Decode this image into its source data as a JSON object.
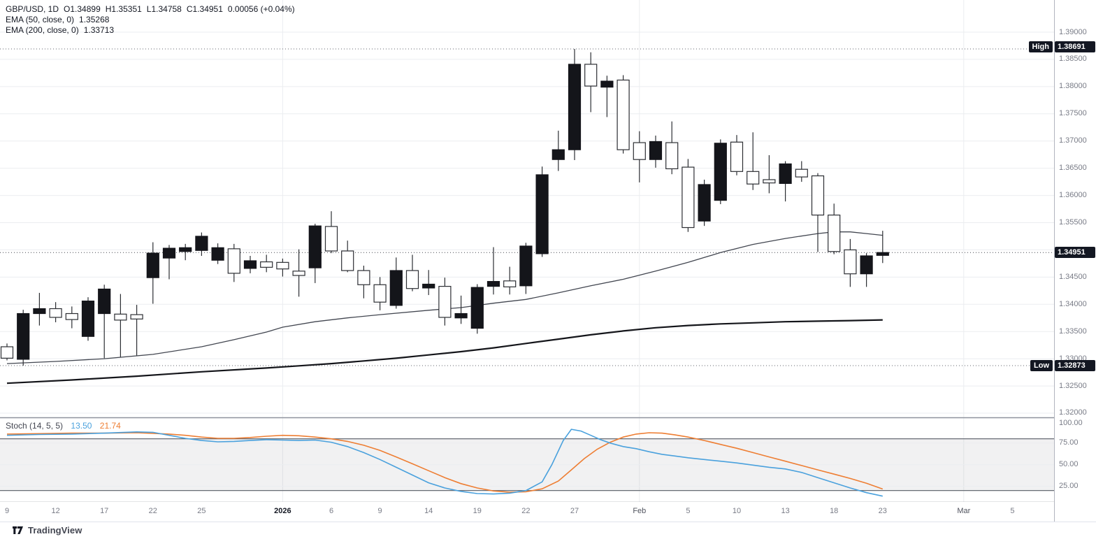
{
  "header": {
    "symbol": "GBP/USD, 1D",
    "open": "O1.34899",
    "high": "H1.35351",
    "low": "L1.34758",
    "close": "C1.34951",
    "change": "0.00056 (+0.04%)",
    "ema50_label": "EMA (50, close, 0)",
    "ema50_value": "1.35268",
    "ema200_label": "EMA (200, close, 0)",
    "ema200_value": "1.33713"
  },
  "stoch_legend": {
    "label": "Stoch (14, 5, 5)",
    "k_value": "13.50",
    "d_value": "21.74"
  },
  "badges": {
    "high_label": "High",
    "high_value": "1.38691",
    "low_label": "Low",
    "low_value": "1.32873",
    "last_value": "1.34951"
  },
  "colors": {
    "candle_up": "#14151a",
    "candle_down": "#ffffff",
    "candle_border": "#2c2e33",
    "ema50": "#424650",
    "ema200": "#14151a",
    "stoch_k": "#4aa1dd",
    "stoch_d": "#ee7e33",
    "grid": "#ebedf0",
    "band_line": "#555a63",
    "separator": "#8f939e",
    "axis_text": "#787b86",
    "badge_bg": "#131722"
  },
  "price_axis": {
    "ticks": [
      "1.39000",
      "1.38500",
      "1.38000",
      "1.37500",
      "1.37000",
      "1.36500",
      "1.36000",
      "1.35500",
      "1.34500",
      "1.34000",
      "1.33500",
      "1.33000",
      "1.32500",
      "1.32000"
    ]
  },
  "stoch_axis": {
    "ticks": [
      "100.00",
      "75.00",
      "50.00",
      "25.00"
    ]
  },
  "footer": {
    "brand": "TradingView"
  },
  "chart_data": {
    "type": "candlestick",
    "symbol": "GBP/USD",
    "interval": "1D",
    "y_axis": {
      "min": 1.32,
      "max": 1.39,
      "tick_step": 0.005
    },
    "high_marker": 1.38691,
    "low_marker": 1.32873,
    "last_price": 1.34951,
    "time_labels": [
      {
        "t": "9",
        "i": 0
      },
      {
        "t": "12",
        "i": 3
      },
      {
        "t": "17",
        "i": 6
      },
      {
        "t": "22",
        "i": 9
      },
      {
        "t": "25",
        "i": 12
      },
      {
        "t": "2026",
        "i": 17,
        "strong": true
      },
      {
        "t": "6",
        "i": 20
      },
      {
        "t": "9",
        "i": 23
      },
      {
        "t": "14",
        "i": 26
      },
      {
        "t": "19",
        "i": 29
      },
      {
        "t": "22",
        "i": 32
      },
      {
        "t": "27",
        "i": 35
      },
      {
        "t": "Feb",
        "i": 39,
        "month": true
      },
      {
        "t": "5",
        "i": 42
      },
      {
        "t": "10",
        "i": 45
      },
      {
        "t": "13",
        "i": 48
      },
      {
        "t": "18",
        "i": 51
      },
      {
        "t": "23",
        "i": 54
      },
      {
        "t": "Mar",
        "i": 59,
        "month": true
      },
      {
        "t": "5",
        "i": 62
      }
    ],
    "candles": [
      {
        "d": "Dec 9",
        "o": 1.3322,
        "h": 1.3328,
        "l": 1.3297,
        "c": 1.3301
      },
      {
        "d": "Dec 10",
        "o": 1.3299,
        "h": 1.339,
        "l": 1.32873,
        "c": 1.3383
      },
      {
        "d": "Dec 11",
        "o": 1.3383,
        "h": 1.3421,
        "l": 1.3361,
        "c": 1.3392
      },
      {
        "d": "Dec 12",
        "o": 1.3392,
        "h": 1.3404,
        "l": 1.3367,
        "c": 1.3376
      },
      {
        "d": "Dec 15",
        "o": 1.3383,
        "h": 1.3396,
        "l": 1.3356,
        "c": 1.3372
      },
      {
        "d": "Dec 16",
        "o": 1.3341,
        "h": 1.3413,
        "l": 1.3333,
        "c": 1.3406
      },
      {
        "d": "Dec 17",
        "o": 1.3383,
        "h": 1.3436,
        "l": 1.3301,
        "c": 1.3428
      },
      {
        "d": "Dec 18",
        "o": 1.3382,
        "h": 1.3419,
        "l": 1.3303,
        "c": 1.3371
      },
      {
        "d": "Dec 19",
        "o": 1.3381,
        "h": 1.3399,
        "l": 1.3306,
        "c": 1.3373
      },
      {
        "d": "Dec 22",
        "o": 1.3449,
        "h": 1.3514,
        "l": 1.3401,
        "c": 1.3494
      },
      {
        "d": "Dec 23",
        "o": 1.3485,
        "h": 1.3509,
        "l": 1.3446,
        "c": 1.3503
      },
      {
        "d": "Dec 24",
        "o": 1.3497,
        "h": 1.3511,
        "l": 1.3481,
        "c": 1.3504
      },
      {
        "d": "Dec 25",
        "o": 1.3499,
        "h": 1.3532,
        "l": 1.3489,
        "c": 1.3525
      },
      {
        "d": "Dec 26",
        "o": 1.3481,
        "h": 1.3512,
        "l": 1.3474,
        "c": 1.3504
      },
      {
        "d": "Dec 29",
        "o": 1.3502,
        "h": 1.3511,
        "l": 1.3441,
        "c": 1.3457
      },
      {
        "d": "Dec 30",
        "o": 1.3466,
        "h": 1.3489,
        "l": 1.3457,
        "c": 1.348
      },
      {
        "d": "Dec 31",
        "o": 1.3478,
        "h": 1.3491,
        "l": 1.3459,
        "c": 1.3468
      },
      {
        "d": "Jan 1",
        "o": 1.3477,
        "h": 1.3484,
        "l": 1.3451,
        "c": 1.3465
      },
      {
        "d": "Jan 2",
        "o": 1.3461,
        "h": 1.3501,
        "l": 1.3414,
        "c": 1.3453
      },
      {
        "d": "Jan 5",
        "o": 1.3467,
        "h": 1.3548,
        "l": 1.3439,
        "c": 1.3544
      },
      {
        "d": "Jan 6",
        "o": 1.3543,
        "h": 1.3571,
        "l": 1.3494,
        "c": 1.3498
      },
      {
        "d": "Jan 7",
        "o": 1.3498,
        "h": 1.3517,
        "l": 1.3459,
        "c": 1.3462
      },
      {
        "d": "Jan 8",
        "o": 1.3462,
        "h": 1.3471,
        "l": 1.3411,
        "c": 1.3436
      },
      {
        "d": "Jan 9",
        "o": 1.3436,
        "h": 1.345,
        "l": 1.3389,
        "c": 1.3404
      },
      {
        "d": "Jan 12",
        "o": 1.3398,
        "h": 1.3486,
        "l": 1.3392,
        "c": 1.3462
      },
      {
        "d": "Jan 13",
        "o": 1.3462,
        "h": 1.3491,
        "l": 1.3424,
        "c": 1.3429
      },
      {
        "d": "Jan 14",
        "o": 1.343,
        "h": 1.3463,
        "l": 1.3417,
        "c": 1.3437
      },
      {
        "d": "Jan 15",
        "o": 1.3433,
        "h": 1.3449,
        "l": 1.3361,
        "c": 1.3376
      },
      {
        "d": "Jan 16",
        "o": 1.3375,
        "h": 1.3416,
        "l": 1.3364,
        "c": 1.3383
      },
      {
        "d": "Jan 19",
        "o": 1.3356,
        "h": 1.3437,
        "l": 1.3346,
        "c": 1.3431
      },
      {
        "d": "Jan 20",
        "o": 1.3433,
        "h": 1.3505,
        "l": 1.3418,
        "c": 1.3442
      },
      {
        "d": "Jan 21",
        "o": 1.3443,
        "h": 1.3469,
        "l": 1.3418,
        "c": 1.3432
      },
      {
        "d": "Jan 22",
        "o": 1.3434,
        "h": 1.3513,
        "l": 1.3419,
        "c": 1.3507
      },
      {
        "d": "Jan 23",
        "o": 1.3493,
        "h": 1.3653,
        "l": 1.3487,
        "c": 1.3638
      },
      {
        "d": "Jan 26",
        "o": 1.3666,
        "h": 1.3719,
        "l": 1.3645,
        "c": 1.3684
      },
      {
        "d": "Jan 27",
        "o": 1.3684,
        "h": 1.38691,
        "l": 1.3665,
        "c": 1.3841
      },
      {
        "d": "Jan 28",
        "o": 1.3841,
        "h": 1.3863,
        "l": 1.3753,
        "c": 1.3801
      },
      {
        "d": "Jan 29",
        "o": 1.3799,
        "h": 1.382,
        "l": 1.3744,
        "c": 1.381
      },
      {
        "d": "Jan 30",
        "o": 1.3812,
        "h": 1.3821,
        "l": 1.3677,
        "c": 1.3684
      },
      {
        "d": "Feb 2",
        "o": 1.3697,
        "h": 1.3718,
        "l": 1.3624,
        "c": 1.3666
      },
      {
        "d": "Feb 3",
        "o": 1.3666,
        "h": 1.371,
        "l": 1.3651,
        "c": 1.3699
      },
      {
        "d": "Feb 4",
        "o": 1.3697,
        "h": 1.3736,
        "l": 1.3639,
        "c": 1.3649
      },
      {
        "d": "Feb 5",
        "o": 1.3652,
        "h": 1.3667,
        "l": 1.3533,
        "c": 1.3541
      },
      {
        "d": "Feb 6",
        "o": 1.3553,
        "h": 1.3629,
        "l": 1.3544,
        "c": 1.362
      },
      {
        "d": "Feb 9",
        "o": 1.3591,
        "h": 1.3703,
        "l": 1.3584,
        "c": 1.3696
      },
      {
        "d": "Feb 10",
        "o": 1.3698,
        "h": 1.3711,
        "l": 1.3637,
        "c": 1.3644
      },
      {
        "d": "Feb 11",
        "o": 1.3644,
        "h": 1.3716,
        "l": 1.361,
        "c": 1.3621
      },
      {
        "d": "Feb 12",
        "o": 1.3629,
        "h": 1.3674,
        "l": 1.3604,
        "c": 1.3623
      },
      {
        "d": "Feb 13",
        "o": 1.3622,
        "h": 1.3663,
        "l": 1.3589,
        "c": 1.3658
      },
      {
        "d": "Feb 16",
        "o": 1.3648,
        "h": 1.3663,
        "l": 1.3625,
        "c": 1.3634
      },
      {
        "d": "Feb 17",
        "o": 1.3636,
        "h": 1.3641,
        "l": 1.3496,
        "c": 1.3564
      },
      {
        "d": "Feb 18",
        "o": 1.3564,
        "h": 1.3585,
        "l": 1.3492,
        "c": 1.3497
      },
      {
        "d": "Feb 19",
        "o": 1.35,
        "h": 1.352,
        "l": 1.3432,
        "c": 1.3456
      },
      {
        "d": "Feb 20",
        "o": 1.3456,
        "h": 1.3494,
        "l": 1.3432,
        "c": 1.3489
      },
      {
        "d": "Feb 23",
        "o": 1.34899,
        "h": 1.35351,
        "l": 1.34758,
        "c": 1.34951
      }
    ],
    "ema50": {
      "label": "EMA (50, close, 0)",
      "last": 1.35268,
      "points": [
        [
          0,
          1.3291
        ],
        [
          3,
          1.3295
        ],
        [
          6,
          1.33
        ],
        [
          9,
          1.3308
        ],
        [
          12,
          1.3322
        ],
        [
          14,
          1.3335
        ],
        [
          16,
          1.3349
        ],
        [
          17,
          1.3358
        ],
        [
          19,
          1.3368
        ],
        [
          21,
          1.3375
        ],
        [
          23,
          1.3381
        ],
        [
          26,
          1.3389
        ],
        [
          28,
          1.3394
        ],
        [
          30,
          1.3402
        ],
        [
          32,
          1.3409
        ],
        [
          34,
          1.3421
        ],
        [
          36,
          1.3434
        ],
        [
          38,
          1.3446
        ],
        [
          40,
          1.3461
        ],
        [
          42,
          1.3477
        ],
        [
          44,
          1.3495
        ],
        [
          46,
          1.351
        ],
        [
          48,
          1.3521
        ],
        [
          50,
          1.353
        ],
        [
          51,
          1.3533
        ],
        [
          52,
          1.3533
        ],
        [
          53,
          1.353
        ],
        [
          54,
          1.35268
        ]
      ]
    },
    "ema200": {
      "label": "EMA (200, close, 0)",
      "last": 1.33713,
      "points": [
        [
          0,
          1.3255
        ],
        [
          4,
          1.3261
        ],
        [
          8,
          1.3268
        ],
        [
          12,
          1.3276
        ],
        [
          16,
          1.3283
        ],
        [
          18,
          1.3287
        ],
        [
          20,
          1.3291
        ],
        [
          22,
          1.3296
        ],
        [
          24,
          1.3301
        ],
        [
          26,
          1.3307
        ],
        [
          28,
          1.3313
        ],
        [
          30,
          1.332
        ],
        [
          32,
          1.3328
        ],
        [
          34,
          1.3336
        ],
        [
          36,
          1.3344
        ],
        [
          38,
          1.3351
        ],
        [
          40,
          1.3357
        ],
        [
          42,
          1.3361
        ],
        [
          44,
          1.3364
        ],
        [
          46,
          1.3366
        ],
        [
          48,
          1.3368
        ],
        [
          50,
          1.3369
        ],
        [
          52,
          1.337
        ],
        [
          54,
          1.33713
        ]
      ]
    },
    "stoch": {
      "label": "Stoch (14, 5, 5)",
      "k_last": 13.5,
      "d_last": 21.74,
      "upper_band": 80,
      "lower_band": 20,
      "k": [
        [
          0,
          84
        ],
        [
          2,
          85
        ],
        [
          4,
          85.5
        ],
        [
          6,
          86.5
        ],
        [
          8,
          88
        ],
        [
          9,
          87.5
        ],
        [
          10,
          84
        ],
        [
          11,
          80.5
        ],
        [
          12,
          78
        ],
        [
          13,
          76.5
        ],
        [
          14,
          77
        ],
        [
          15,
          78
        ],
        [
          16,
          79
        ],
        [
          17,
          78.5
        ],
        [
          18,
          78
        ],
        [
          19,
          78.5
        ],
        [
          20,
          76
        ],
        [
          21,
          71
        ],
        [
          22,
          64
        ],
        [
          23,
          56
        ],
        [
          24,
          47
        ],
        [
          25,
          38
        ],
        [
          26,
          29
        ],
        [
          27,
          23
        ],
        [
          28,
          19
        ],
        [
          29,
          16.5
        ],
        [
          30,
          16
        ],
        [
          31,
          17
        ],
        [
          32,
          20
        ],
        [
          33,
          30
        ],
        [
          33.6,
          50
        ],
        [
          34.3,
          78
        ],
        [
          34.8,
          91
        ],
        [
          35.4,
          89
        ],
        [
          36,
          84
        ],
        [
          36.6,
          79
        ],
        [
          37.2,
          75
        ],
        [
          38,
          71
        ],
        [
          38.8,
          68.5
        ],
        [
          39.6,
          65
        ],
        [
          40.4,
          62
        ],
        [
          41.2,
          60
        ],
        [
          42,
          58
        ],
        [
          43,
          56
        ],
        [
          44,
          54
        ],
        [
          45,
          52
        ],
        [
          46,
          49.5
        ],
        [
          47,
          47
        ],
        [
          48,
          45
        ],
        [
          49,
          41
        ],
        [
          50,
          35
        ],
        [
          51,
          29
        ],
        [
          52,
          23
        ],
        [
          53,
          17.5
        ],
        [
          54,
          13.5
        ]
      ],
      "d": [
        [
          0,
          85.5
        ],
        [
          2,
          86
        ],
        [
          4,
          86.5
        ],
        [
          6,
          86.5
        ],
        [
          8,
          87
        ],
        [
          10,
          85.5
        ],
        [
          11,
          84
        ],
        [
          12,
          82
        ],
        [
          13,
          80.5
        ],
        [
          14,
          80.5
        ],
        [
          15,
          81.5
        ],
        [
          16,
          83
        ],
        [
          17,
          84
        ],
        [
          18,
          83.5
        ],
        [
          19,
          82
        ],
        [
          20,
          80
        ],
        [
          21,
          77
        ],
        [
          22,
          72.5
        ],
        [
          23,
          66.5
        ],
        [
          24,
          59
        ],
        [
          25,
          51
        ],
        [
          26,
          43
        ],
        [
          27,
          35
        ],
        [
          28,
          28
        ],
        [
          29,
          23
        ],
        [
          30,
          19.5
        ],
        [
          31,
          18
        ],
        [
          32,
          18.5
        ],
        [
          33,
          22
        ],
        [
          34,
          31
        ],
        [
          34.8,
          44
        ],
        [
          35.6,
          57
        ],
        [
          36.4,
          68
        ],
        [
          37.2,
          76
        ],
        [
          38,
          82
        ],
        [
          38.8,
          85.5
        ],
        [
          39.6,
          87
        ],
        [
          40.4,
          86.5
        ],
        [
          41.2,
          84.5
        ],
        [
          42,
          82
        ],
        [
          43,
          78
        ],
        [
          44,
          73.5
        ],
        [
          45,
          69
        ],
        [
          46,
          64
        ],
        [
          47,
          59
        ],
        [
          48,
          54
        ],
        [
          49,
          49
        ],
        [
          50,
          44
        ],
        [
          51,
          39
        ],
        [
          52,
          34
        ],
        [
          53,
          28.5
        ],
        [
          54,
          21.74
        ]
      ]
    }
  }
}
